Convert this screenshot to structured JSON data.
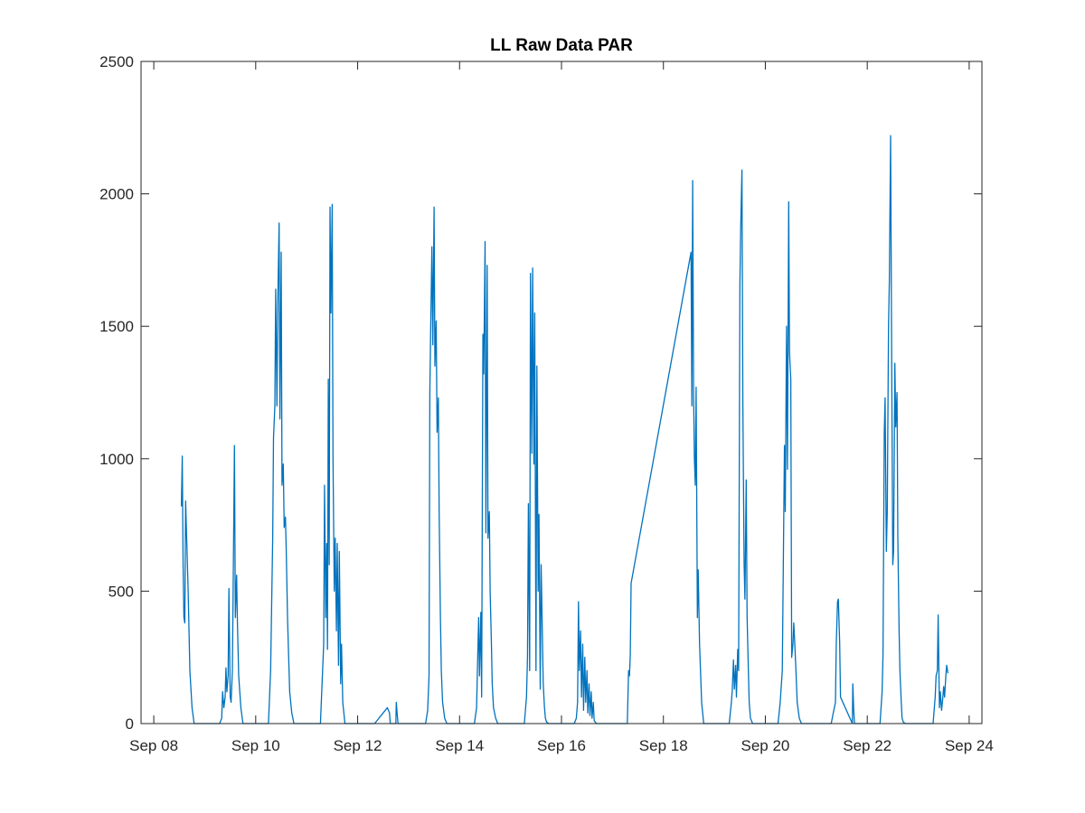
{
  "chart_data": {
    "type": "line",
    "title": "LL Raw Data PAR",
    "xlabel": "",
    "ylabel": "",
    "x_unit": "date",
    "xlim": [
      "Sep 07 18:00",
      "Sep 24 06:00"
    ],
    "ylim": [
      0,
      2500
    ],
    "x_ticks": [
      {
        "label": "Sep 08",
        "value": "Sep 08 00:00"
      },
      {
        "label": "Sep 10",
        "value": "Sep 10 00:00"
      },
      {
        "label": "Sep 12",
        "value": "Sep 12 00:00"
      },
      {
        "label": "Sep 14",
        "value": "Sep 14 00:00"
      },
      {
        "label": "Sep 16",
        "value": "Sep 16 00:00"
      },
      {
        "label": "Sep 18",
        "value": "Sep 18 00:00"
      },
      {
        "label": "Sep 20",
        "value": "Sep 20 00:00"
      },
      {
        "label": "Sep 22",
        "value": "Sep 22 00:00"
      },
      {
        "label": "Sep 24",
        "value": "Sep 24 00:00"
      }
    ],
    "y_ticks": [
      {
        "label": "0",
        "value": 0
      },
      {
        "label": "500",
        "value": 500
      },
      {
        "label": "1000",
        "value": 1000
      },
      {
        "label": "1500",
        "value": 1500
      },
      {
        "label": "2000",
        "value": 2000
      },
      {
        "label": "2500",
        "value": 2500
      }
    ],
    "grid": false,
    "series": [
      {
        "color": "#0072BD",
        "x": [
          "Sep 08 13:00",
          "Sep 08 13:24",
          "Sep 08 13:48",
          "Sep 08 14:12",
          "Sep 08 14:36",
          "Sep 08 15:00",
          "Sep 08 16:12",
          "Sep 08 17:00",
          "Sep 08 18:00",
          "Sep 08 19:00",
          "Sep 09 07:00",
          "Sep 09 08:00",
          "Sep 09 08:24",
          "Sep 09 09:00",
          "Sep 09 09:36",
          "Sep 09 10:00",
          "Sep 09 10:24",
          "Sep 09 11:00",
          "Sep 09 11:24",
          "Sep 09 12:00",
          "Sep 09 12:24",
          "Sep 09 13:00",
          "Sep 09 13:24",
          "Sep 09 14:00",
          "Sep 09 14:24",
          "Sep 09 15:00",
          "Sep 09 15:24",
          "Sep 09 16:00",
          "Sep 09 17:00",
          "Sep 09 18:00",
          "Sep 10 06:00",
          "Sep 10 07:00",
          "Sep 10 08:00",
          "Sep 10 08:24",
          "Sep 10 09:00",
          "Sep 10 09:24",
          "Sep 10 10:00",
          "Sep 10 10:24",
          "Sep 10 11:00",
          "Sep 10 11:24",
          "Sep 10 12:00",
          "Sep 10 12:24",
          "Sep 10 13:00",
          "Sep 10 13:24",
          "Sep 10 14:00",
          "Sep 10 14:24",
          "Sep 10 15:00",
          "Sep 10 15:24",
          "Sep 10 16:00",
          "Sep 10 17:00",
          "Sep 10 18:00",
          "Sep 11 06:30",
          "Sep 11 07:30",
          "Sep 11 08:00",
          "Sep 11 08:24",
          "Sep 11 09:00",
          "Sep 11 09:24",
          "Sep 11 09:48",
          "Sep 11 10:12",
          "Sep 11 10:36",
          "Sep 11 11:00",
          "Sep 11 11:24",
          "Sep 11 12:00",
          "Sep 11 12:24",
          "Sep 11 13:00",
          "Sep 11 13:24",
          "Sep 11 14:00",
          "Sep 11 14:24",
          "Sep 11 15:00",
          "Sep 11 15:24",
          "Sep 11 16:00",
          "Sep 11 16:24",
          "Sep 11 17:00",
          "Sep 11 18:00",
          "Sep 12 08:00",
          "Sep 12 09:00",
          "Sep 12 10:00",
          "Sep 12 11:00",
          "Sep 12 12:00",
          "Sep 12 13:00",
          "Sep 12 14:00",
          "Sep 12 15:00",
          "Sep 12 15:12",
          "Sep 12 15:24",
          "Sep 12 18:00",
          "Sep 12 18:12",
          "Sep 12 18:36",
          "Sep 12 19:00",
          "Sep 13 08:00",
          "Sep 13 09:00",
          "Sep 13 09:36",
          "Sep 13 10:00",
          "Sep 13 10:24",
          "Sep 13 11:00",
          "Sep 13 11:24",
          "Sep 13 12:00",
          "Sep 13 12:24",
          "Sep 13 13:00",
          "Sep 13 13:24",
          "Sep 13 14:00",
          "Sep 13 14:24",
          "Sep 13 15:00",
          "Sep 13 15:24",
          "Sep 13 16:00",
          "Sep 13 17:00",
          "Sep 13 18:00",
          "Sep 14 07:00",
          "Sep 14 08:00",
          "Sep 14 08:24",
          "Sep 14 09:00",
          "Sep 14 09:24",
          "Sep 14 10:00",
          "Sep 14 10:24",
          "Sep 14 11:00",
          "Sep 14 11:24",
          "Sep 14 12:00",
          "Sep 14 12:24",
          "Sep 14 13:00",
          "Sep 14 13:24",
          "Sep 14 14:00",
          "Sep 14 14:24",
          "Sep 14 15:00",
          "Sep 14 15:24",
          "Sep 14 16:00",
          "Sep 14 17:00",
          "Sep 14 18:00",
          "Sep 15 06:30",
          "Sep 15 07:30",
          "Sep 15 08:00",
          "Sep 15 08:24",
          "Sep 15 09:00",
          "Sep 15 09:24",
          "Sep 15 10:00",
          "Sep 15 10:24",
          "Sep 15 11:00",
          "Sep 15 11:24",
          "Sep 15 12:00",
          "Sep 15 12:24",
          "Sep 15 13:00",
          "Sep 15 13:24",
          "Sep 15 14:00",
          "Sep 15 14:24",
          "Sep 15 15:00",
          "Sep 15 15:24",
          "Sep 15 16:00",
          "Sep 15 16:24",
          "Sep 15 17:00",
          "Sep 15 18:00",
          "Sep 16 06:00",
          "Sep 16 07:00",
          "Sep 16 07:36",
          "Sep 16 08:00",
          "Sep 16 08:24",
          "Sep 16 09:00",
          "Sep 16 09:24",
          "Sep 16 10:00",
          "Sep 16 10:24",
          "Sep 16 11:00",
          "Sep 16 11:24",
          "Sep 16 12:00",
          "Sep 16 12:24",
          "Sep 16 13:00",
          "Sep 16 13:24",
          "Sep 16 14:00",
          "Sep 16 14:24",
          "Sep 16 15:00",
          "Sep 16 15:24",
          "Sep 16 16:00",
          "Sep 16 16:24",
          "Sep 16 17:00",
          "Sep 16 18:00",
          "Sep 17 07:00",
          "Sep 17 07:36",
          "Sep 17 08:00",
          "Sep 17 08:24",
          "Sep 17 08:48",
          "Sep 18 13:00",
          "Sep 18 13:24",
          "Sep 18 13:48",
          "Sep 18 14:12",
          "Sep 18 14:36",
          "Sep 18 15:00",
          "Sep 18 15:24",
          "Sep 18 16:00",
          "Sep 18 16:24",
          "Sep 18 17:00",
          "Sep 18 18:00",
          "Sep 18 19:00",
          "Sep 19 07:00",
          "Sep 19 08:00",
          "Sep 19 08:24",
          "Sep 19 09:00",
          "Sep 19 09:24",
          "Sep 19 10:00",
          "Sep 19 10:24",
          "Sep 19 11:00",
          "Sep 19 11:24",
          "Sep 19 12:00",
          "Sep 19 12:24",
          "Sep 19 13:00",
          "Sep 19 13:24",
          "Sep 19 14:00",
          "Sep 19 14:24",
          "Sep 19 15:00",
          "Sep 19 15:24",
          "Sep 19 16:00",
          "Sep 19 16:24",
          "Sep 19 17:00",
          "Sep 19 18:00",
          "Sep 20 06:00",
          "Sep 20 07:00",
          "Sep 20 08:00",
          "Sep 20 08:24",
          "Sep 20 09:00",
          "Sep 20 09:24",
          "Sep 20 10:00",
          "Sep 20 10:24",
          "Sep 20 11:00",
          "Sep 20 11:24",
          "Sep 20 12:00",
          "Sep 20 12:24",
          "Sep 20 13:00",
          "Sep 20 13:24",
          "Sep 20 14:00",
          "Sep 20 14:24",
          "Sep 20 15:00",
          "Sep 20 16:00",
          "Sep 20 17:00",
          "Sep 20 18:00",
          "Sep 21 07:00",
          "Sep 21 08:00",
          "Sep 21 09:00",
          "Sep 21 09:24",
          "Sep 21 10:00",
          "Sep 21 10:24",
          "Sep 21 11:00",
          "Sep 21 11:24",
          "Sep 21 17:00",
          "Sep 21 17:12",
          "Sep 21 17:36",
          "Sep 21 18:00",
          "Sep 22 06:00",
          "Sep 22 07:00",
          "Sep 22 07:24",
          "Sep 22 08:00",
          "Sep 22 08:24",
          "Sep 22 09:00",
          "Sep 22 09:24",
          "Sep 22 10:00",
          "Sep 22 10:24",
          "Sep 22 11:00",
          "Sep 22 11:24",
          "Sep 22 12:00",
          "Sep 22 12:24",
          "Sep 22 13:00",
          "Sep 22 13:24",
          "Sep 22 14:00",
          "Sep 22 14:24",
          "Sep 22 15:00",
          "Sep 22 15:24",
          "Sep 22 16:00",
          "Sep 22 16:24",
          "Sep 22 17:00",
          "Sep 22 18:00",
          "Sep 23 07:00",
          "Sep 23 08:00",
          "Sep 23 08:24",
          "Sep 23 09:00",
          "Sep 23 09:24",
          "Sep 23 10:00",
          "Sep 23 10:24",
          "Sep 23 11:00",
          "Sep 23 11:24",
          "Sep 23 12:00",
          "Sep 23 12:24",
          "Sep 23 13:00",
          "Sep 23 13:24",
          "Sep 23 14:00"
        ],
        "values": [
          820,
          1010,
          600,
          400,
          380,
          840,
          500,
          200,
          60,
          0,
          0,
          20,
          120,
          60,
          100,
          210,
          120,
          180,
          510,
          100,
          80,
          200,
          520,
          1050,
          400,
          560,
          380,
          180,
          60,
          0,
          0,
          200,
          700,
          1080,
          1200,
          1640,
          1200,
          1580,
          1890,
          1150,
          1780,
          900,
          980,
          740,
          780,
          650,
          400,
          280,
          120,
          40,
          0,
          0,
          200,
          300,
          900,
          400,
          680,
          280,
          1300,
          600,
          1950,
          1550,
          1960,
          1000,
          500,
          700,
          350,
          680,
          220,
          650,
          150,
          300,
          80,
          0,
          0,
          10,
          20,
          30,
          40,
          50,
          60,
          40,
          20,
          0,
          0,
          80,
          40,
          0,
          0,
          50,
          180,
          1250,
          1480,
          1800,
          1430,
          1950,
          1350,
          1520,
          1100,
          1230,
          800,
          400,
          200,
          80,
          20,
          0,
          0,
          60,
          200,
          400,
          180,
          420,
          100,
          1470,
          1320,
          1820,
          720,
          1730,
          700,
          800,
          500,
          300,
          150,
          60,
          20,
          0,
          0,
          100,
          250,
          830,
          200,
          1700,
          1020,
          1720,
          980,
          1550,
          200,
          1350,
          500,
          790,
          130,
          600,
          330,
          150,
          60,
          20,
          5,
          0,
          0,
          20,
          80,
          460,
          200,
          350,
          100,
          300,
          50,
          250,
          80,
          200,
          40,
          150,
          30,
          120,
          20,
          80,
          10,
          5,
          0,
          0,
          0,
          0,
          200,
          180,
          260,
          530,
          1780,
          1200,
          2050,
          1250,
          1000,
          900,
          1270,
          400,
          580,
          300,
          80,
          0,
          0,
          80,
          120,
          240,
          130,
          220,
          100,
          280,
          200,
          1650,
          1870,
          2090,
          1200,
          600,
          470,
          920,
          400,
          200,
          80,
          20,
          0,
          0,
          80,
          200,
          550,
          1050,
          800,
          1500,
          960,
          1970,
          1400,
          1300,
          250,
          300,
          380,
          280,
          200,
          80,
          20,
          0,
          0,
          0,
          40,
          80,
          300,
          460,
          470,
          300,
          100,
          0,
          150,
          50,
          0,
          0,
          120,
          260,
          1100,
          1230,
          650,
          800,
          1500,
          1670,
          2220,
          1500,
          600,
          650,
          1360,
          1120,
          1250,
          700,
          350,
          200,
          80,
          20,
          5,
          0,
          0,
          100,
          180,
          200,
          410,
          60,
          120,
          50,
          80,
          140,
          100,
          180,
          220,
          190
        ]
      }
    ]
  }
}
